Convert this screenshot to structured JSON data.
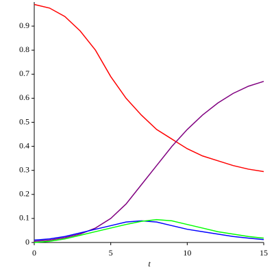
{
  "chart_data": {
    "type": "line",
    "x_label": "t",
    "x": [
      0,
      1,
      2,
      3,
      4,
      5,
      6,
      7,
      8,
      9,
      10,
      11,
      12,
      13,
      14,
      15
    ],
    "series": [
      {
        "color": "#ff0000",
        "values": [
          0.99,
          0.975,
          0.94,
          0.88,
          0.8,
          0.69,
          0.6,
          0.53,
          0.47,
          0.43,
          0.39,
          0.36,
          0.34,
          0.32,
          0.305,
          0.295
        ]
      },
      {
        "color": "#800080",
        "values": [
          0.005,
          0.01,
          0.02,
          0.035,
          0.06,
          0.1,
          0.16,
          0.24,
          0.32,
          0.4,
          0.47,
          0.53,
          0.58,
          0.62,
          0.65,
          0.67
        ]
      },
      {
        "color": "#0000ff",
        "values": [
          0.01,
          0.015,
          0.025,
          0.04,
          0.055,
          0.07,
          0.085,
          0.09,
          0.085,
          0.07,
          0.055,
          0.045,
          0.035,
          0.025,
          0.018,
          0.012
        ]
      },
      {
        "color": "#00ff00",
        "values": [
          0,
          0.005,
          0.015,
          0.03,
          0.045,
          0.06,
          0.075,
          0.088,
          0.095,
          0.09,
          0.075,
          0.06,
          0.045,
          0.035,
          0.025,
          0.018
        ]
      }
    ],
    "xlim": [
      0,
      15
    ],
    "ylim": [
      0,
      1
    ],
    "xticks": [
      0,
      5,
      10,
      15
    ],
    "yticks": [
      0,
      0.1,
      0.2,
      0.3,
      0.4,
      0.5,
      0.6,
      0.7,
      0.8,
      0.9
    ]
  }
}
